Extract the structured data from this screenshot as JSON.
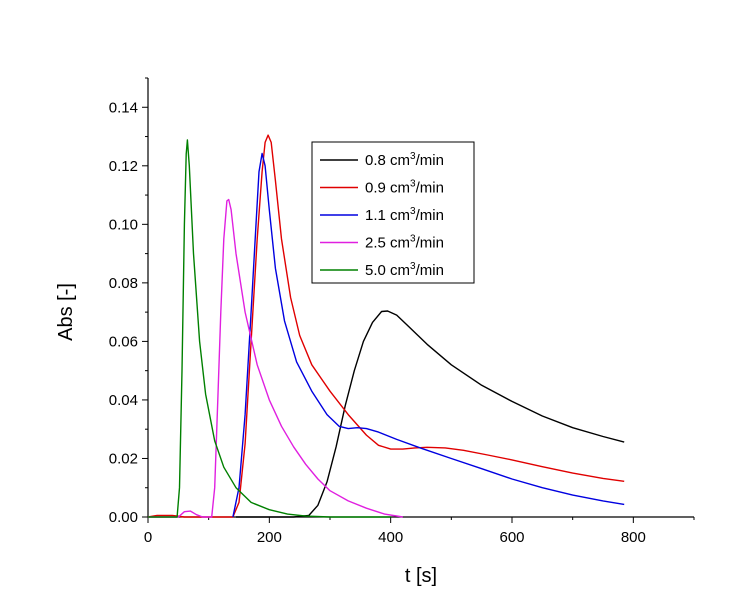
{
  "chart_data": {
    "type": "line",
    "xlabel": "t [s]",
    "ylabel": "Abs [-]",
    "xlim": [
      0,
      900
    ],
    "ylim": [
      0,
      0.15
    ],
    "x_ticks": [
      "0",
      "200",
      "400",
      "600",
      "800"
    ],
    "y_ticks": [
      "0.00",
      "0.02",
      "0.04",
      "0.06",
      "0.08",
      "0.10",
      "0.12",
      "0.14"
    ],
    "legend_position": "top-right",
    "grid": false,
    "series": [
      {
        "name": "0.8 cm3/min",
        "legend_base": "0.8 cm",
        "legend_sup": "3",
        "legend_tail": "/min",
        "color": "#000000",
        "points": [
          [
            145,
            0
          ],
          [
            240,
            0
          ],
          [
            265,
            0.0005
          ],
          [
            280,
            0.004
          ],
          [
            295,
            0.012
          ],
          [
            310,
            0.024
          ],
          [
            325,
            0.038
          ],
          [
            340,
            0.05
          ],
          [
            355,
            0.06
          ],
          [
            370,
            0.0665
          ],
          [
            385,
            0.0702
          ],
          [
            395,
            0.0704
          ],
          [
            410,
            0.069
          ],
          [
            430,
            0.065
          ],
          [
            460,
            0.059
          ],
          [
            500,
            0.052
          ],
          [
            550,
            0.045
          ],
          [
            600,
            0.0395
          ],
          [
            650,
            0.0345
          ],
          [
            700,
            0.0305
          ],
          [
            750,
            0.0275
          ],
          [
            785,
            0.0256
          ]
        ]
      },
      {
        "name": "0.9 cm3/min",
        "legend_base": "0.9 cm",
        "legend_sup": "3",
        "legend_tail": "/min",
        "color": "#e00000",
        "points": [
          [
            0,
            0
          ],
          [
            15,
            0.0005
          ],
          [
            40,
            0.0005
          ],
          [
            60,
            0
          ],
          [
            140,
            0
          ],
          [
            150,
            0.005
          ],
          [
            160,
            0.025
          ],
          [
            170,
            0.06
          ],
          [
            180,
            0.095
          ],
          [
            188,
            0.118
          ],
          [
            193,
            0.128
          ],
          [
            198,
            0.1305
          ],
          [
            203,
            0.128
          ],
          [
            210,
            0.115
          ],
          [
            220,
            0.095
          ],
          [
            235,
            0.075
          ],
          [
            250,
            0.062
          ],
          [
            270,
            0.052
          ],
          [
            300,
            0.043
          ],
          [
            330,
            0.035
          ],
          [
            360,
            0.028
          ],
          [
            380,
            0.0245
          ],
          [
            400,
            0.0232
          ],
          [
            420,
            0.0232
          ],
          [
            440,
            0.0236
          ],
          [
            460,
            0.0238
          ],
          [
            490,
            0.0236
          ],
          [
            520,
            0.0228
          ],
          [
            560,
            0.0212
          ],
          [
            600,
            0.0195
          ],
          [
            650,
            0.0172
          ],
          [
            700,
            0.015
          ],
          [
            750,
            0.0132
          ],
          [
            785,
            0.0122
          ]
        ]
      },
      {
        "name": "1.1 cm3/min",
        "legend_base": "1.1 cm",
        "legend_sup": "3",
        "legend_tail": "/min",
        "color": "#0000e0",
        "points": [
          [
            140,
            0
          ],
          [
            150,
            0.01
          ],
          [
            160,
            0.035
          ],
          [
            170,
            0.07
          ],
          [
            178,
            0.1
          ],
          [
            183,
            0.118
          ],
          [
            188,
            0.1242
          ],
          [
            193,
            0.12
          ],
          [
            200,
            0.105
          ],
          [
            210,
            0.085
          ],
          [
            225,
            0.067
          ],
          [
            245,
            0.053
          ],
          [
            270,
            0.043
          ],
          [
            295,
            0.035
          ],
          [
            315,
            0.031
          ],
          [
            330,
            0.0302
          ],
          [
            345,
            0.0305
          ],
          [
            360,
            0.0302
          ],
          [
            380,
            0.029
          ],
          [
            410,
            0.0265
          ],
          [
            450,
            0.0235
          ],
          [
            500,
            0.02
          ],
          [
            550,
            0.0165
          ],
          [
            600,
            0.013
          ],
          [
            650,
            0.01
          ],
          [
            700,
            0.0075
          ],
          [
            750,
            0.0055
          ],
          [
            785,
            0.0043
          ]
        ]
      },
      {
        "name": "2.5 cm3/min",
        "legend_base": "2.5 cm",
        "legend_sup": "3",
        "legend_tail": "/min",
        "color": "#e020e0",
        "points": [
          [
            0,
            0
          ],
          [
            50,
            0
          ],
          [
            60,
            0.0018
          ],
          [
            70,
            0.002
          ],
          [
            80,
            0.0008
          ],
          [
            90,
            0
          ],
          [
            105,
            0
          ],
          [
            110,
            0.01
          ],
          [
            115,
            0.04
          ],
          [
            120,
            0.07
          ],
          [
            125,
            0.095
          ],
          [
            130,
            0.108
          ],
          [
            133,
            0.1085
          ],
          [
            137,
            0.105
          ],
          [
            145,
            0.09
          ],
          [
            160,
            0.07
          ],
          [
            180,
            0.052
          ],
          [
            200,
            0.04
          ],
          [
            220,
            0.031
          ],
          [
            240,
            0.024
          ],
          [
            260,
            0.018
          ],
          [
            280,
            0.013
          ],
          [
            300,
            0.009
          ],
          [
            330,
            0.0055
          ],
          [
            360,
            0.003
          ],
          [
            390,
            0.001
          ],
          [
            420,
            0
          ]
        ]
      },
      {
        "name": "5.0 cm3/min",
        "legend_base": "5.0 cm",
        "legend_sup": "3",
        "legend_tail": "/min",
        "color": "#008000",
        "points": [
          [
            0,
            0
          ],
          [
            48,
            0
          ],
          [
            52,
            0.01
          ],
          [
            56,
            0.05
          ],
          [
            60,
            0.1
          ],
          [
            63,
            0.124
          ],
          [
            65,
            0.1288
          ],
          [
            68,
            0.12
          ],
          [
            75,
            0.09
          ],
          [
            85,
            0.06
          ],
          [
            95,
            0.042
          ],
          [
            110,
            0.026
          ],
          [
            125,
            0.017
          ],
          [
            145,
            0.01
          ],
          [
            170,
            0.005
          ],
          [
            200,
            0.0025
          ],
          [
            230,
            0.001
          ],
          [
            260,
            0.0003
          ],
          [
            300,
            0
          ],
          [
            400,
            0
          ]
        ]
      }
    ]
  }
}
